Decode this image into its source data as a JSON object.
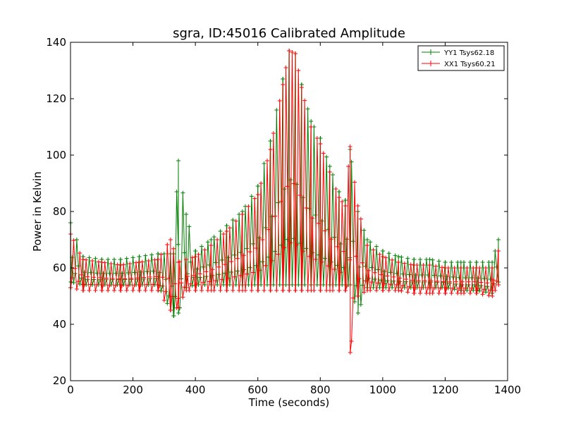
{
  "chart_data": {
    "type": "line",
    "title": "sgra, ID:45016 Calibrated Amplitude",
    "xlabel": "Time (seconds)",
    "ylabel": "Power in Kelvin",
    "xlim": [
      0,
      1400
    ],
    "ylim": [
      20,
      140
    ],
    "xticks": [
      0,
      200,
      400,
      600,
      800,
      1000,
      1200,
      1400
    ],
    "yticks": [
      20,
      40,
      60,
      80,
      100,
      120,
      140
    ],
    "grid": false,
    "legend_position": "top-right",
    "marker": "+",
    "series": [
      {
        "name": "YY1 Tsys62.18",
        "color": "#008000",
        "x": [
          0,
          40,
          100,
          160,
          220,
          280,
          330,
          345,
          370,
          400,
          450,
          500,
          550,
          600,
          640,
          680,
          700,
          720,
          740,
          770,
          800,
          830,
          860,
          880,
          895,
          920,
          950,
          1000,
          1050,
          1100,
          1150,
          1200,
          1250,
          1300,
          1350,
          1370
        ],
        "upper": [
          76,
          64,
          63,
          63,
          64,
          65,
          65,
          98,
          79,
          66,
          70,
          75,
          80,
          89,
          105,
          127,
          137,
          136,
          125,
          112,
          106,
          96,
          87,
          84,
          102,
          80,
          70,
          66,
          64,
          63,
          63,
          62,
          62,
          62,
          62,
          70
        ],
        "lower": [
          55,
          54,
          54,
          54,
          54,
          54,
          43,
          44,
          53,
          54,
          54,
          54,
          54,
          54,
          54,
          54,
          54,
          54,
          54,
          54,
          54,
          54,
          54,
          54,
          54,
          44,
          53,
          53,
          53,
          53,
          53,
          53,
          52,
          52,
          51,
          55
        ]
      },
      {
        "name": "XX1 Tsys60.21",
        "color": "#ff0000",
        "x": [
          0,
          40,
          100,
          160,
          220,
          280,
          320,
          345,
          370,
          400,
          450,
          500,
          550,
          600,
          640,
          680,
          700,
          720,
          740,
          770,
          800,
          830,
          860,
          880,
          895,
          920,
          950,
          1000,
          1050,
          1100,
          1150,
          1200,
          1250,
          1300,
          1350,
          1370
        ],
        "upper": [
          72,
          63,
          62,
          61,
          62,
          63,
          70,
          62,
          63,
          64,
          68,
          73,
          79,
          86,
          102,
          125,
          137,
          136,
          124,
          110,
          104,
          94,
          85,
          82,
          103,
          82,
          68,
          64,
          62,
          61,
          61,
          60,
          60,
          60,
          60,
          66
        ],
        "lower": [
          53,
          52,
          52,
          52,
          52,
          52,
          45,
          46,
          52,
          52,
          52,
          52,
          52,
          52,
          52,
          52,
          52,
          52,
          52,
          52,
          52,
          52,
          52,
          52,
          30,
          50,
          52,
          52,
          52,
          51,
          51,
          51,
          51,
          51,
          50,
          54
        ]
      }
    ]
  },
  "legend": {
    "entries": [
      "YY1 Tsys62.18",
      "XX1 Tsys60.21"
    ]
  }
}
